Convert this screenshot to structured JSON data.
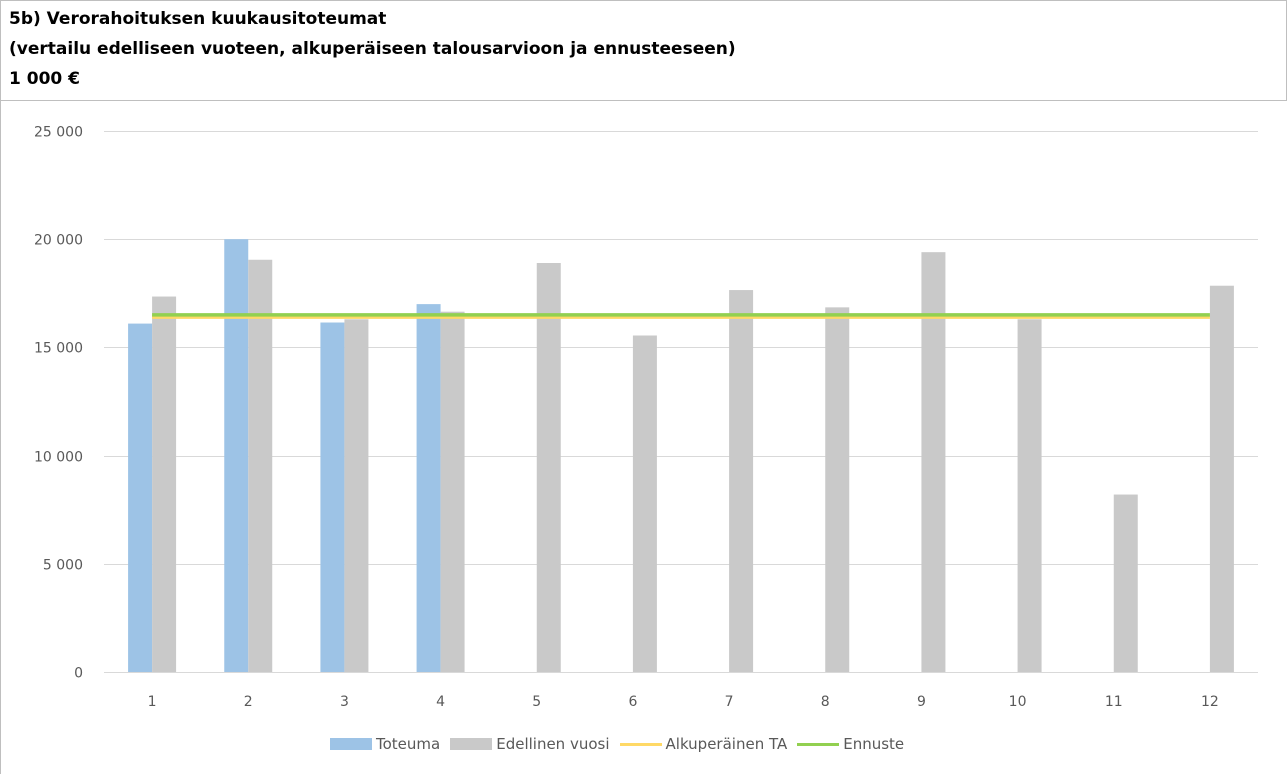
{
  "header": {
    "line1": "5b) Verorahoituksen kuukausitoteumat",
    "line2": "(vertailu edelliseen vuoteen, alkuperäiseen talousarvioon ja ennusteeseen)",
    "line3": "1 000 €"
  },
  "colors": {
    "toteuma": "#9dc3e6",
    "edellinen": "#c9c9c9",
    "alkuperainen": "#ffd966",
    "ennuste": "#92d050",
    "grid": "#d9d9d9",
    "axis_text": "#595959"
  },
  "chart_data": {
    "type": "bar",
    "categories": [
      "1",
      "2",
      "3",
      "4",
      "5",
      "6",
      "7",
      "8",
      "9",
      "10",
      "11",
      "12"
    ],
    "series": [
      {
        "name": "Toteuma",
        "kind": "bar",
        "values": [
          16100,
          20000,
          16150,
          17000,
          null,
          null,
          null,
          null,
          null,
          null,
          null,
          null
        ]
      },
      {
        "name": "Edellinen vuosi",
        "kind": "bar",
        "values": [
          17350,
          19050,
          16300,
          16650,
          18900,
          15550,
          17650,
          16850,
          19400,
          16300,
          8200,
          17850
        ]
      },
      {
        "name": "Alkuperäinen TA",
        "kind": "line",
        "values": [
          16400,
          16400,
          16400,
          16400,
          16400,
          16400,
          16400,
          16400,
          16400,
          16400,
          16400,
          16400
        ]
      },
      {
        "name": "Ennuste",
        "kind": "line",
        "values": [
          16500,
          16500,
          16500,
          16500,
          16500,
          16500,
          16500,
          16500,
          16500,
          16500,
          16500,
          16500
        ]
      }
    ],
    "ylim": [
      0,
      25000
    ],
    "yticks": [
      0,
      5000,
      10000,
      15000,
      20000,
      25000
    ],
    "ytick_labels": [
      "0",
      "5 000",
      "10 000",
      "15 000",
      "20 000",
      "25 000"
    ],
    "grid": true,
    "legend_position": "bottom"
  }
}
